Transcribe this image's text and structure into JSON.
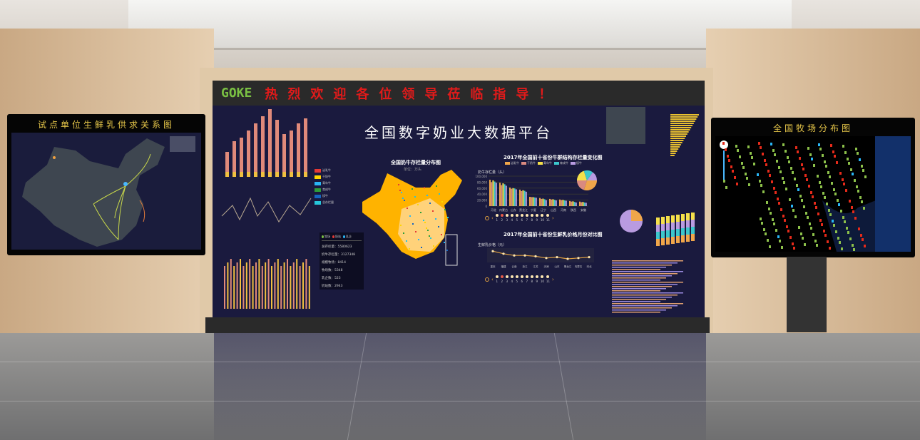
{
  "banner": {
    "logo": "GOKE",
    "welcome": "热烈欢迎各位领导莅临指导！"
  },
  "left_tv": {
    "title": "试点单位生鲜乳供求关系图"
  },
  "right_tv": {
    "title": "全国牧场分布图"
  },
  "main": {
    "title": "全国数字奶业大数据平台",
    "map": {
      "title": "全国奶牛存栏量分布图",
      "unit": "单位：万头",
      "legend": [
        "泌乳牛",
        "干奶牛",
        "青年牛",
        "育成牛",
        "犊牛",
        "总存栏量"
      ],
      "legend_colors": [
        "#e53935",
        "#ffd600",
        "#29b6f6",
        "#2e9e3a",
        "#1565c0",
        "#26c6da"
      ],
      "fill_color": "#ffb300"
    },
    "stats": {
      "legend": [
        "牧场",
        "奶站",
        "乳企"
      ],
      "items": [
        "总存栏量：5580623",
        "奶牛存栏量：3127348",
        "规模牧场：8414",
        "牧场数：5348",
        "乳企数：523",
        "奶站数：2943"
      ]
    },
    "bar_chart": {
      "title": "2017年全国前十省份牛群结构存栏量变化图",
      "ylabel": "奶牛存栏量（头）",
      "series_names": [
        "泌乳牛",
        "干奶牛",
        "青年牛",
        "育成牛",
        "犊牛"
      ],
      "colors": [
        "#f0a64a",
        "#d98a80",
        "#f5e04a",
        "#3cc7cc",
        "#b99be0"
      ],
      "categories": [
        "河北",
        "内蒙古",
        "山东",
        "黑龙江",
        "宁夏",
        "辽宁",
        "山西",
        "河南",
        "陕西",
        "安徽"
      ],
      "yticks": [
        "100,000",
        "80,000",
        "60,000",
        "40,000",
        "20,000",
        "0"
      ],
      "values": [
        [
          88000,
          78000,
          62000,
          55000,
          31000,
          27000,
          24000,
          22000,
          17000,
          15000
        ],
        [
          80000,
          70000,
          58000,
          50000,
          30000,
          24000,
          22000,
          20000,
          15000,
          13000
        ],
        [
          86000,
          76000,
          60000,
          53000,
          30000,
          25000,
          23000,
          21000,
          16000,
          14000
        ],
        [
          82000,
          73000,
          59000,
          51000,
          29000,
          23000,
          21000,
          19000,
          14000,
          12000
        ],
        [
          78000,
          68000,
          56000,
          48000,
          28000,
          20000,
          19000,
          18000,
          12000,
          11000
        ]
      ],
      "pie_labels": [
        "泌乳牛",
        "干奶牛",
        "青年牛",
        "育成牛",
        "犊牛"
      ],
      "pie_values": [
        30,
        20,
        20,
        15,
        15
      ],
      "pages": [
        "1",
        "2",
        "3",
        "4",
        "5",
        "6",
        "7",
        "8",
        "9",
        "10",
        "11"
      ],
      "active_page": 2
    },
    "line_chart": {
      "title": "2017年全国前十省份生鲜乳价格月份对比图",
      "ylabel": "生鲜乳价格（元）",
      "categories": [
        "重庆",
        "福建",
        "云南",
        "浙江",
        "江苏",
        "天津",
        "山东",
        "黑龙江",
        "内蒙古",
        "河北"
      ],
      "values": [
        4.2,
        3.9,
        3.7,
        3.7,
        3.6,
        3.4,
        3.5,
        3.3,
        3.4,
        3.5
      ],
      "line_color": "#e0a040",
      "pages": [
        "1",
        "2",
        "3",
        "4",
        "5",
        "6",
        "7",
        "8",
        "9",
        "10",
        "11"
      ],
      "active_page": 2
    }
  }
}
